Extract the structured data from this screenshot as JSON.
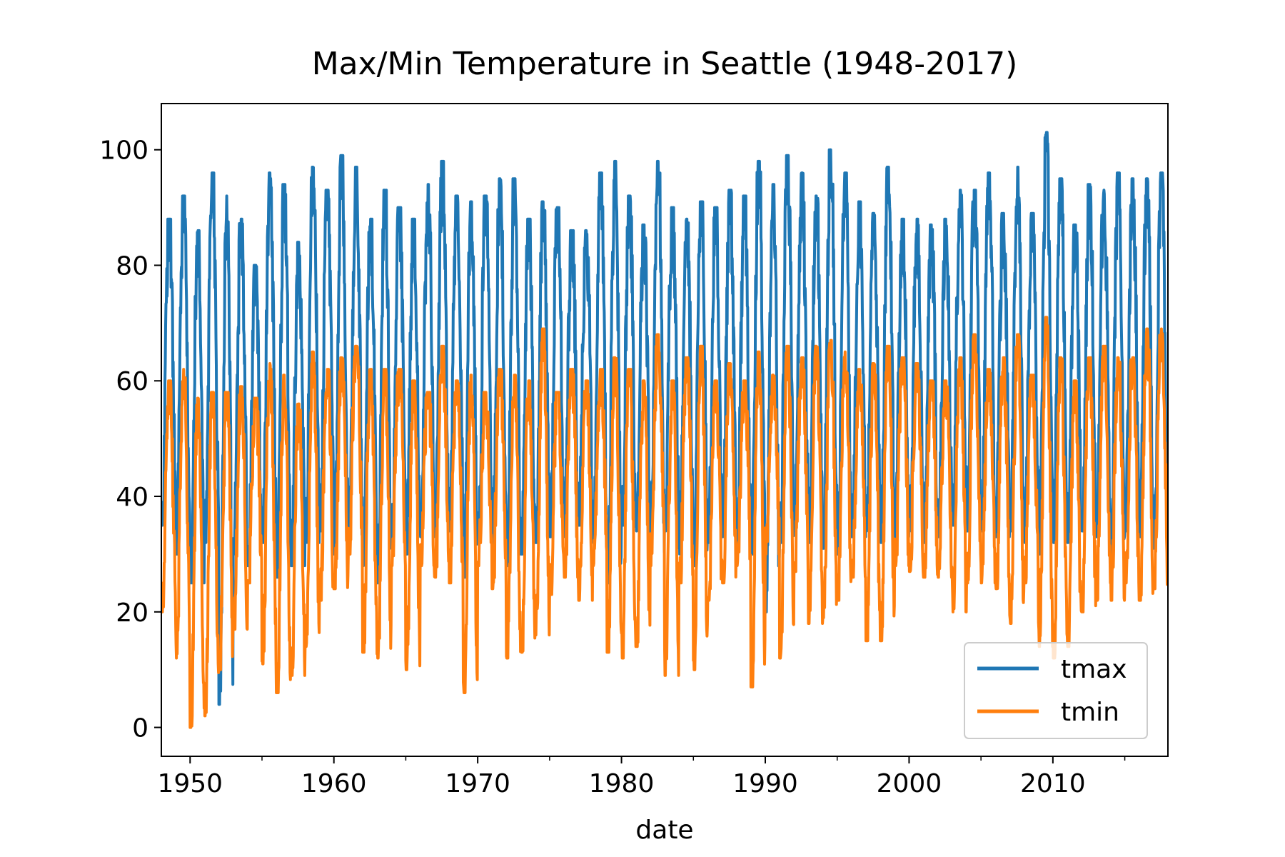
{
  "chart_data": {
    "type": "line",
    "title": "Max/Min Temperature in Seattle (1948-2017)",
    "xlabel": "date",
    "ylabel": "",
    "xlim": [
      1948.0,
      2018.0
    ],
    "ylim": [
      -5,
      108
    ],
    "x_ticks": [
      1950,
      1960,
      1970,
      1980,
      1990,
      2000,
      2010
    ],
    "x_tick_labels": [
      "1950",
      "1960",
      "1970",
      "1980",
      "1990",
      "2000",
      "2010"
    ],
    "y_ticks": [
      0,
      20,
      40,
      60,
      80,
      100
    ],
    "y_tick_labels": [
      "0",
      "20",
      "40",
      "60",
      "80",
      "100"
    ],
    "grid": false,
    "legend_position": "lower-right",
    "series": [
      {
        "name": "tmax",
        "color": "#1f77b4",
        "x": [
          1948,
          1949,
          1950,
          1951,
          1952,
          1953,
          1954,
          1955,
          1956,
          1957,
          1958,
          1959,
          1960,
          1961,
          1962,
          1963,
          1964,
          1965,
          1966,
          1967,
          1968,
          1969,
          1970,
          1971,
          1972,
          1973,
          1974,
          1975,
          1976,
          1977,
          1978,
          1979,
          1980,
          1981,
          1982,
          1983,
          1984,
          1985,
          1986,
          1987,
          1988,
          1989,
          1990,
          1991,
          1992,
          1993,
          1994,
          1995,
          1996,
          1997,
          1998,
          1999,
          2000,
          2001,
          2002,
          2003,
          2004,
          2005,
          2006,
          2007,
          2008,
          2009,
          2010,
          2011,
          2012,
          2013,
          2014,
          2015,
          2016,
          2017
        ],
        "summer_peaks": [
          88,
          92,
          86,
          96,
          92,
          88,
          80,
          96,
          94,
          84,
          97,
          93,
          99,
          97,
          88,
          93,
          90,
          88,
          94,
          98,
          92,
          91,
          92,
          95,
          95,
          88,
          91,
          90,
          86,
          86,
          96,
          98,
          92,
          87,
          98,
          90,
          88,
          91,
          90,
          93,
          92,
          98,
          94,
          99,
          96,
          92,
          100,
          96,
          91,
          89,
          97,
          88,
          88,
          87,
          88,
          93,
          93,
          96,
          89,
          97,
          89,
          103,
          95,
          87,
          94,
          93,
          96,
          95,
          95,
          96
        ],
        "winter_lows": [
          35,
          30,
          25,
          32,
          4,
          30,
          28,
          32,
          26,
          28,
          32,
          34,
          30,
          31,
          28,
          25,
          32,
          30,
          33,
          34,
          34,
          26,
          32,
          30,
          28,
          30,
          32,
          33,
          35,
          35,
          32,
          25,
          35,
          34,
          30,
          34,
          30,
          28,
          32,
          33,
          31,
          30,
          20,
          32,
          34,
          32,
          31,
          30,
          33,
          34,
          32,
          33,
          34,
          32,
          33,
          35,
          34,
          34,
          33,
          34,
          32,
          30,
          32,
          32,
          34,
          33,
          30,
          34,
          33,
          31
        ]
      },
      {
        "name": "tmin",
        "color": "#ff7f0e",
        "x": [
          1948,
          1949,
          1950,
          1951,
          1952,
          1953,
          1954,
          1955,
          1956,
          1957,
          1958,
          1959,
          1960,
          1961,
          1962,
          1963,
          1964,
          1965,
          1966,
          1967,
          1968,
          1969,
          1970,
          1971,
          1972,
          1973,
          1974,
          1975,
          1976,
          1977,
          1978,
          1979,
          1980,
          1981,
          1982,
          1983,
          1984,
          1985,
          1986,
          1987,
          1988,
          1989,
          1990,
          1991,
          1992,
          1993,
          1994,
          1995,
          1996,
          1997,
          1998,
          1999,
          2000,
          2001,
          2002,
          2003,
          2004,
          2005,
          2006,
          2007,
          2008,
          2009,
          2010,
          2011,
          2012,
          2013,
          2014,
          2015,
          2016,
          2017
        ],
        "summer_peaks": [
          60,
          62,
          57,
          58,
          58,
          59,
          57,
          63,
          61,
          56,
          65,
          62,
          64,
          66,
          62,
          62,
          62,
          60,
          58,
          66,
          60,
          61,
          58,
          62,
          61,
          60,
          69,
          58,
          62,
          60,
          62,
          64,
          62,
          60,
          68,
          60,
          64,
          66,
          60,
          63,
          60,
          65,
          61,
          66,
          64,
          66,
          67,
          65,
          62,
          63,
          66,
          64,
          63,
          60,
          60,
          64,
          68,
          62,
          64,
          68,
          61,
          71,
          64,
          60,
          64,
          66,
          64,
          64,
          69,
          69
        ],
        "winter_lows": [
          20,
          12,
          0,
          2,
          10,
          17,
          25,
          11,
          6,
          9,
          14,
          22,
          24,
          30,
          13,
          12,
          28,
          10,
          28,
          26,
          25,
          6,
          28,
          24,
          12,
          13,
          16,
          23,
          26,
          22,
          28,
          13,
          12,
          14,
          28,
          9,
          25,
          10,
          22,
          25,
          28,
          7,
          30,
          12,
          27,
          18,
          19,
          22,
          26,
          15,
          15,
          28,
          27,
          26,
          26,
          20,
          25,
          25,
          24,
          18,
          25,
          14,
          12,
          14,
          20,
          22,
          22,
          25,
          22,
          24
        ]
      }
    ]
  }
}
